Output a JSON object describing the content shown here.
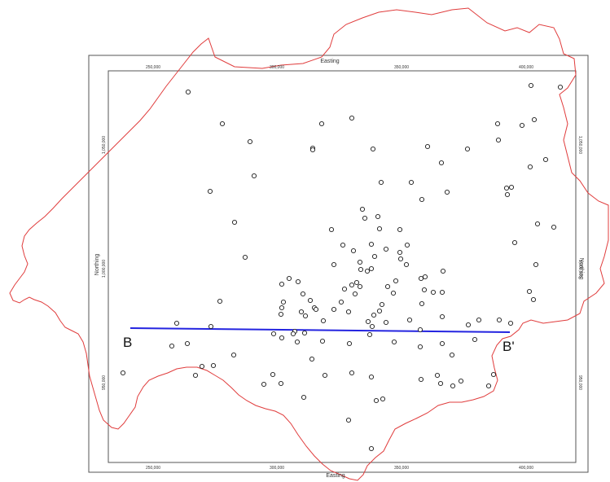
{
  "map": {
    "top_axis_title": "Easting",
    "bottom_axis_title": "Easting",
    "left_axis_title": "Northing",
    "right_axis_title": "Northing",
    "easting_ticks": [
      "250,000",
      "300,000",
      "350,000",
      "400,000"
    ],
    "northing_ticks": [
      "1,050,000",
      "1,000,000",
      "950,000"
    ],
    "profile": {
      "start_label": "B",
      "end_label": "B'",
      "color": "#2424e0"
    },
    "boundary_color": "#e03c3c",
    "point_count": 140
  }
}
